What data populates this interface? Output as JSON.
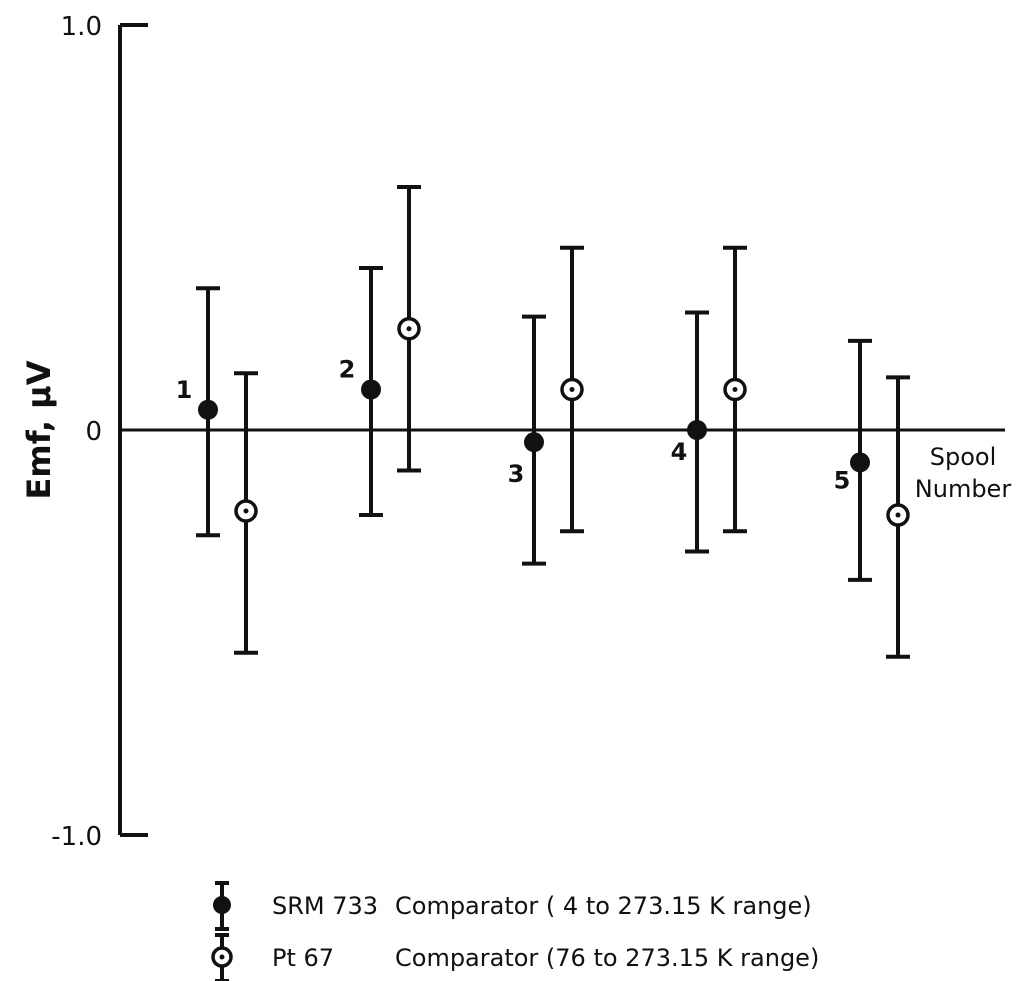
{
  "chart_data": {
    "type": "scatter",
    "ylabel": "Emf, μV",
    "ylim": [
      -1.0,
      1.0
    ],
    "yticks": [
      {
        "value": 1.0,
        "label": "1.0"
      },
      {
        "value": 0,
        "label": "0"
      },
      {
        "value": -1.0,
        "label": "-1.0"
      }
    ],
    "x_axis_label_lines": [
      "Spool",
      "Number"
    ],
    "spools": [
      {
        "label": "1",
        "x": 1
      },
      {
        "label": "2",
        "x": 2
      },
      {
        "label": "3",
        "x": 3
      },
      {
        "label": "4",
        "x": 4
      },
      {
        "label": "5",
        "x": 5
      }
    ],
    "series": [
      {
        "marker": "filled-circle",
        "legend_name": "SRM 733",
        "legend_text": "Comparator  ( 4 to 273.15 K range)",
        "points": [
          {
            "x": 1,
            "y": 0.05,
            "err_low": -0.26,
            "err_high": 0.35
          },
          {
            "x": 2,
            "y": 0.1,
            "err_low": -0.21,
            "err_high": 0.4
          },
          {
            "x": 3,
            "y": -0.03,
            "err_low": -0.33,
            "err_high": 0.28
          },
          {
            "x": 4,
            "y": 0.0,
            "err_low": -0.3,
            "err_high": 0.29
          },
          {
            "x": 5,
            "y": -0.08,
            "err_low": -0.37,
            "err_high": 0.22
          }
        ]
      },
      {
        "marker": "open-dotted-circle",
        "legend_name": "Pt 67",
        "legend_text": "Comparator (76 to 273.15 K range)",
        "points": [
          {
            "x": 1,
            "y": -0.2,
            "err_low": -0.55,
            "err_high": 0.14
          },
          {
            "x": 2,
            "y": 0.25,
            "err_low": -0.1,
            "err_high": 0.6
          },
          {
            "x": 3,
            "y": 0.1,
            "err_low": -0.25,
            "err_high": 0.45
          },
          {
            "x": 4,
            "y": 0.1,
            "err_low": -0.25,
            "err_high": 0.45
          },
          {
            "x": 5,
            "y": -0.21,
            "err_low": -0.56,
            "err_high": 0.13
          }
        ]
      }
    ],
    "grid": false,
    "legend_position": "bottom-center"
  }
}
